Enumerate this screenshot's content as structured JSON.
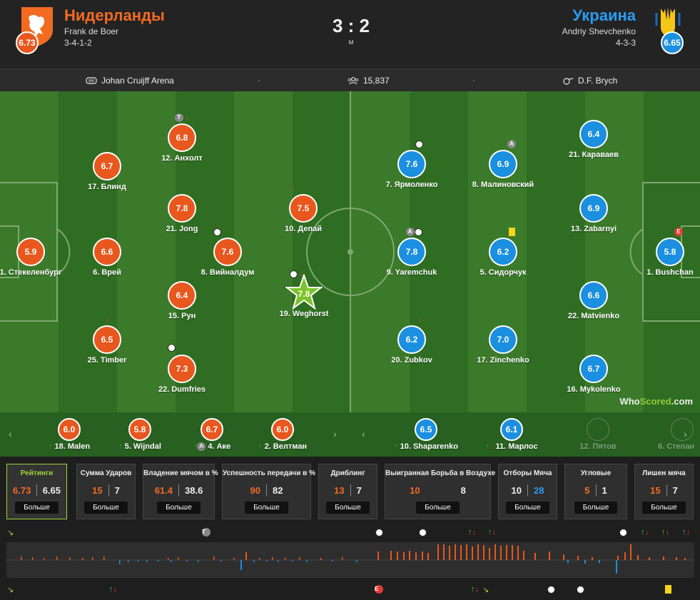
{
  "home": {
    "name": "Нидерланды",
    "manager": "Frank de Boer",
    "formation": "3-4-1-2",
    "rating": "6.73",
    "color": "#e8571e"
  },
  "away": {
    "name": "Украина",
    "manager": "Andriy Shevchenko",
    "formation": "4-3-3",
    "rating": "6.65",
    "color": "#1b8fe0"
  },
  "score": "3 : 2",
  "status": "м",
  "info": {
    "venue": "Johan Cruijff Arena",
    "attendance": "15,837",
    "referee": "D.F. Brych"
  },
  "home_players": [
    {
      "rating": "6.8",
      "label": "12. Анхолт"
    },
    {
      "rating": "6.7",
      "label": "17. Блинд"
    },
    {
      "rating": "7.8",
      "label": "21. Jong"
    },
    {
      "rating": "7.5",
      "label": "10. Депай"
    },
    {
      "rating": "5.9",
      "label": "1. Стекеленбург"
    },
    {
      "rating": "6.6",
      "label": "6. Врей"
    },
    {
      "rating": "7.6",
      "label": "8. Вийналдум"
    },
    {
      "rating": "6.4",
      "label": "15. Рун"
    },
    {
      "rating": "7.8",
      "label": "19. Weghorst"
    },
    {
      "rating": "6.5",
      "label": "25. Timber"
    },
    {
      "rating": "7.3",
      "label": "22. Dumfries"
    }
  ],
  "away_players": [
    {
      "rating": "7.6",
      "label": "7. Ярмоленко"
    },
    {
      "rating": "6.9",
      "label": "8. Малиновский"
    },
    {
      "rating": "6.4",
      "label": "21. Караваев"
    },
    {
      "rating": "6.9",
      "label": "13. Zabarnyi"
    },
    {
      "rating": "7.8",
      "label": "9. Yaremchuk"
    },
    {
      "rating": "6.2",
      "label": "5. Сидорчук"
    },
    {
      "rating": "5.8",
      "label": "1. Bushchan"
    },
    {
      "rating": "6.6",
      "label": "22. Matvienko"
    },
    {
      "rating": "6.2",
      "label": "20. Zubkov"
    },
    {
      "rating": "7.0",
      "label": "17. Zinchenko"
    },
    {
      "rating": "6.7",
      "label": "16. Mykolenko"
    }
  ],
  "home_subs": [
    {
      "rating": "6.0",
      "label": "18. Malen"
    },
    {
      "rating": "5.8",
      "label": "5. Wijndal"
    },
    {
      "rating": "6.7",
      "label": "4. Аке"
    },
    {
      "rating": "6.0",
      "label": "2. Велтман"
    }
  ],
  "away_subs": [
    {
      "rating": "6.5",
      "label": "10. Shaparenko"
    },
    {
      "rating": "6.1",
      "label": "11. Марлос"
    },
    {
      "rating": "",
      "label": "12. Пятов"
    },
    {
      "rating": "",
      "label": "6. Степан"
    }
  ],
  "stats": [
    {
      "title": "Рейтинги",
      "home": "6.73",
      "away": "6.65",
      "btn": "Больше"
    },
    {
      "title": "Сумма Ударов",
      "home": "15",
      "away": "7",
      "btn": "Больше"
    },
    {
      "title": "Владение мячом в %",
      "home": "61.4",
      "away": "38.6",
      "btn": "Больше"
    },
    {
      "title": "Успешность передачи в %",
      "home": "90",
      "away": "82",
      "btn": "Больше"
    },
    {
      "title": "Дриблинг",
      "home": "13",
      "away": "7",
      "btn": "Больше"
    },
    {
      "title": "Выигранная Борьба в Воздухе",
      "home": "10",
      "away": "8",
      "btn": "Больше"
    },
    {
      "title": "Отборы Мяча",
      "home": "10",
      "away": "28",
      "btn": "Больше"
    },
    {
      "title": "Угловые",
      "home": "5",
      "away": "1",
      "btn": "Больше"
    },
    {
      "title": "Лишен мяча",
      "home": "15",
      "away": "7",
      "btn": "Больше"
    }
  ],
  "badges": {
    "t": "T",
    "a": "A",
    "e": "E"
  },
  "watermark": {
    "a": "Who",
    "b": "Scored",
    "c": ".com"
  }
}
